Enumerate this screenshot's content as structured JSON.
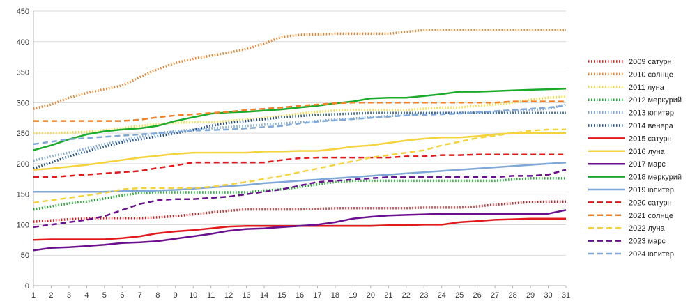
{
  "chart_data": {
    "type": "line",
    "title": "",
    "xlabel": "",
    "ylabel": "",
    "x": [
      1,
      2,
      3,
      4,
      5,
      6,
      7,
      8,
      9,
      10,
      11,
      12,
      13,
      14,
      15,
      16,
      17,
      18,
      19,
      20,
      21,
      22,
      23,
      24,
      25,
      26,
      27,
      28,
      29,
      30,
      31
    ],
    "ylim": [
      0,
      450
    ],
    "yticks": [
      0,
      50,
      100,
      150,
      200,
      250,
      300,
      350,
      400,
      450
    ],
    "grid": "horizontal",
    "legend": "right",
    "series": [
      {
        "name": "2009 сатурн",
        "color": "#e31a1c",
        "dash": "dotted",
        "values": [
          105,
          107,
          109,
          110,
          111,
          111,
          111,
          112,
          114,
          117,
          120,
          123,
          125,
          125,
          125,
          125,
          126,
          127,
          127,
          127,
          127,
          127,
          128,
          128,
          128,
          130,
          133,
          135,
          137,
          138,
          138
        ]
      },
      {
        "name": "2010 солнце",
        "color": "#f58025",
        "dash": "dotted",
        "values": [
          290,
          297,
          308,
          316,
          322,
          328,
          342,
          355,
          365,
          372,
          377,
          382,
          388,
          397,
          408,
          411,
          412,
          413,
          413,
          413,
          413,
          416,
          419,
          419,
          419,
          419,
          419,
          419,
          419,
          419,
          419
        ]
      },
      {
        "name": "2011 луна",
        "color": "#f5dc3c",
        "dash": "dotted",
        "values": [
          250,
          250,
          251,
          252,
          255,
          258,
          262,
          265,
          267,
          268,
          268,
          270,
          272,
          275,
          278,
          282,
          285,
          287,
          288,
          288,
          288,
          288,
          290,
          292,
          292,
          295,
          297,
          300,
          305,
          308,
          310
        ]
      },
      {
        "name": "2012 меркурий",
        "color": "#1aab2b",
        "dash": "dotted",
        "values": [
          125,
          130,
          135,
          138,
          143,
          148,
          152,
          153,
          153,
          153,
          153,
          153,
          153,
          156,
          158,
          162,
          166,
          170,
          172,
          172,
          172,
          172,
          172,
          172,
          172,
          172,
          172,
          174,
          176,
          176,
          176
        ]
      },
      {
        "name": "2013 юпитер",
        "color": "#7fa8d8",
        "dash": "dotted",
        "values": [
          205,
          212,
          218,
          225,
          232,
          238,
          244,
          250,
          253,
          256,
          258,
          260,
          262,
          264,
          266,
          268,
          270,
          272,
          274,
          276,
          278,
          280,
          282,
          283,
          283,
          284,
          285,
          286,
          288,
          290,
          297
        ]
      },
      {
        "name": "2014 венера",
        "color": "#1f4e8c",
        "dash": "dotted",
        "values": [
          192,
          202,
          212,
          220,
          228,
          235,
          240,
          245,
          250,
          255,
          262,
          267,
          270,
          273,
          276,
          278,
          280,
          281,
          282,
          283,
          283,
          283,
          283,
          283,
          283,
          283,
          283,
          283,
          283,
          283,
          283
        ]
      },
      {
        "name": "2015 сатурн",
        "color": "#e31a1c",
        "dash": "solid",
        "values": [
          75,
          76,
          76,
          76,
          76,
          78,
          81,
          86,
          89,
          91,
          94,
          97,
          98,
          98,
          98,
          98,
          98,
          98,
          98,
          98,
          99,
          99,
          100,
          100,
          104,
          106,
          108,
          109,
          110,
          110,
          110
        ]
      },
      {
        "name": "2016 луна",
        "color": "#f5d33c",
        "dash": "solid",
        "values": [
          190,
          192,
          195,
          198,
          202,
          206,
          210,
          213,
          216,
          218,
          218,
          218,
          218,
          220,
          220,
          221,
          221,
          224,
          228,
          230,
          234,
          238,
          241,
          243,
          243,
          245,
          248,
          250,
          250,
          250,
          250
        ]
      },
      {
        "name": "2017 марс",
        "color": "#6a0f8e",
        "dash": "solid",
        "values": [
          58,
          62,
          63,
          65,
          67,
          70,
          71,
          73,
          77,
          81,
          85,
          90,
          93,
          94,
          96,
          98,
          100,
          104,
          110,
          113,
          115,
          116,
          117,
          118,
          118,
          118,
          118,
          118,
          118,
          118,
          124
        ]
      },
      {
        "name": "2018 меркурий",
        "color": "#1aab2b",
        "dash": "solid",
        "values": [
          222,
          230,
          240,
          248,
          253,
          256,
          258,
          262,
          270,
          276,
          282,
          284,
          285,
          287,
          289,
          292,
          295,
          299,
          302,
          307,
          308,
          308,
          311,
          314,
          318,
          318,
          319,
          320,
          321,
          322,
          323
        ]
      },
      {
        "name": "2019 юпитер",
        "color": "#7fa8d8",
        "dash": "solid",
        "values": [
          154,
          154,
          154,
          154,
          154,
          155,
          155,
          156,
          157,
          159,
          161,
          163,
          165,
          168,
          170,
          172,
          174,
          176,
          178,
          180,
          182,
          184,
          186,
          188,
          190,
          192,
          194,
          196,
          198,
          200,
          202
        ]
      },
      {
        "name": "2020 сатурн",
        "color": "#e31a1c",
        "dash": "dashed",
        "values": [
          178,
          178,
          180,
          182,
          184,
          186,
          188,
          193,
          197,
          202,
          202,
          202,
          202,
          202,
          206,
          209,
          210,
          210,
          210,
          210,
          210,
          212,
          212,
          214,
          214,
          215,
          215,
          215,
          215,
          215,
          215
        ]
      },
      {
        "name": "2021 солнце",
        "color": "#f58025",
        "dash": "dashed",
        "values": [
          270,
          270,
          270,
          270,
          270,
          270,
          272,
          276,
          279,
          281,
          283,
          285,
          288,
          290,
          292,
          295,
          297,
          299,
          300,
          300,
          300,
          300,
          300,
          300,
          300,
          300,
          300,
          302,
          302,
          302,
          302
        ]
      },
      {
        "name": "2022 луна",
        "color": "#f5d33c",
        "dash": "dashed",
        "values": [
          136,
          140,
          144,
          148,
          152,
          158,
          160,
          160,
          160,
          160,
          162,
          166,
          170,
          175,
          180,
          186,
          192,
          198,
          204,
          210,
          214,
          218,
          222,
          230,
          236,
          242,
          246,
          250,
          254,
          256,
          256
        ]
      },
      {
        "name": "2023 марс",
        "color": "#6a0f8e",
        "dash": "dashed",
        "values": [
          96,
          100,
          104,
          108,
          114,
          124,
          134,
          140,
          142,
          142,
          144,
          146,
          150,
          154,
          158,
          164,
          170,
          172,
          174,
          176,
          178,
          178,
          178,
          178,
          178,
          178,
          178,
          180,
          180,
          182,
          190
        ]
      },
      {
        "name": "2024 юпитер",
        "color": "#7fa8d8",
        "dash": "dashed",
        "values": [
          232,
          236,
          240,
          242,
          244,
          246,
          248,
          250,
          252,
          254,
          255,
          256,
          258,
          260,
          262,
          266,
          269,
          271,
          273,
          275,
          277,
          279,
          280,
          281,
          282,
          284,
          286,
          288,
          290,
          292,
          295
        ]
      }
    ]
  }
}
